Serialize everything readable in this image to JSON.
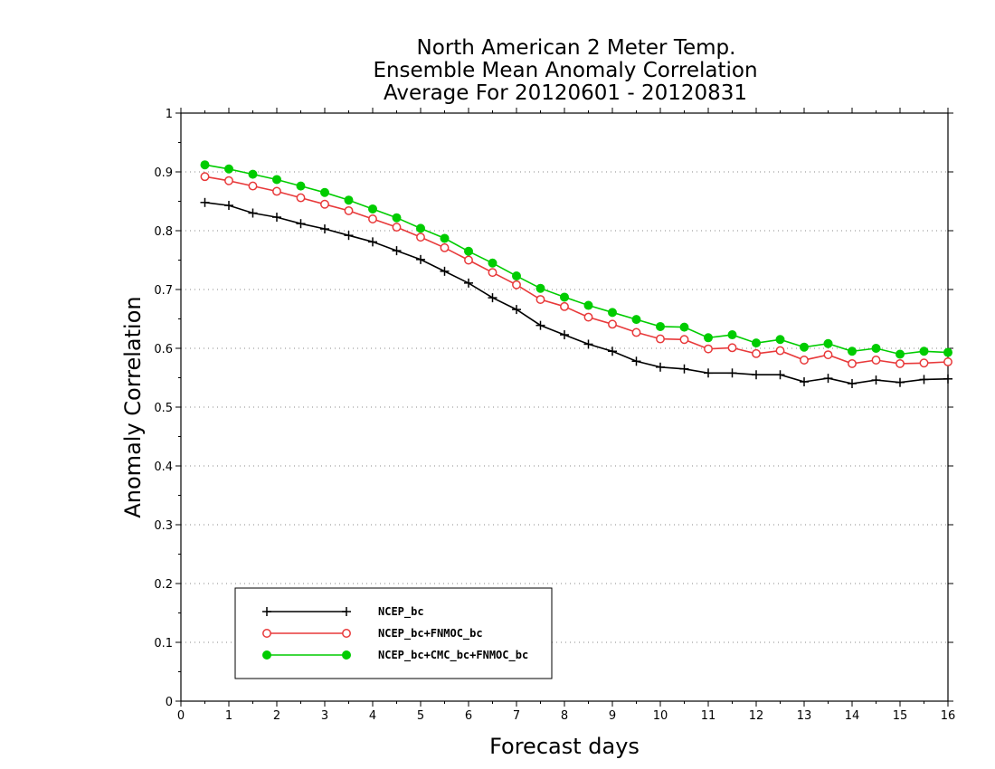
{
  "chart_data": {
    "type": "line",
    "title_lines": [
      "North American 2 Meter Temp.",
      "Ensemble Mean Anomaly Correlation",
      "Average For 20120601 - 20120831"
    ],
    "xlabel": "Forecast days",
    "ylabel": "Anomaly Correlation",
    "xlim": [
      0,
      16
    ],
    "ylim": [
      0,
      1
    ],
    "x_ticks": [
      "0",
      "1",
      "2",
      "3",
      "4",
      "5",
      "6",
      "7",
      "8",
      "9",
      "10",
      "11",
      "12",
      "13",
      "14",
      "15",
      "16"
    ],
    "y_ticks": [
      "0",
      "0.1",
      "0.2",
      "0.3",
      "0.4",
      "0.5",
      "0.6",
      "0.7",
      "0.8",
      "0.9",
      "1"
    ],
    "grid": "horizontal dotted",
    "legend_position": "bottom-left",
    "x": [
      0.5,
      1,
      1.5,
      2,
      2.5,
      3,
      3.5,
      4,
      4.5,
      5,
      5.5,
      6,
      6.5,
      7,
      7.5,
      8,
      8.5,
      9,
      9.5,
      10,
      10.5,
      11,
      11.5,
      12,
      12.5,
      13,
      13.5,
      14,
      14.5,
      15,
      15.5,
      16
    ],
    "series": [
      {
        "name": "NCEP_bc",
        "color": "#000000",
        "marker": "plus",
        "values": [
          0.848,
          0.843,
          0.83,
          0.823,
          0.812,
          0.803,
          0.792,
          0.781,
          0.766,
          0.751,
          0.731,
          0.711,
          0.686,
          0.666,
          0.639,
          0.623,
          0.607,
          0.595,
          0.578,
          0.568,
          0.565,
          0.558,
          0.558,
          0.555,
          0.555,
          0.543,
          0.549,
          0.54,
          0.546,
          0.542,
          0.547,
          0.548
        ]
      },
      {
        "name": "NCEP_bc+FNMOC_bc",
        "color": "#e8393a",
        "marker": "open-circle",
        "values": [
          0.892,
          0.885,
          0.876,
          0.867,
          0.856,
          0.845,
          0.834,
          0.82,
          0.806,
          0.789,
          0.771,
          0.75,
          0.729,
          0.708,
          0.683,
          0.671,
          0.653,
          0.641,
          0.627,
          0.616,
          0.615,
          0.599,
          0.601,
          0.591,
          0.596,
          0.58,
          0.589,
          0.574,
          0.58,
          0.574,
          0.575,
          0.577
        ]
      },
      {
        "name": "NCEP_bc+CMC_bc+FNMOC_bc",
        "color": "#00cc00",
        "marker": "filled-circle",
        "values": [
          0.912,
          0.905,
          0.896,
          0.887,
          0.876,
          0.865,
          0.852,
          0.837,
          0.822,
          0.804,
          0.787,
          0.765,
          0.745,
          0.723,
          0.702,
          0.687,
          0.673,
          0.661,
          0.649,
          0.637,
          0.636,
          0.618,
          0.623,
          0.609,
          0.615,
          0.602,
          0.608,
          0.595,
          0.6,
          0.59,
          0.595,
          0.593
        ]
      }
    ]
  }
}
